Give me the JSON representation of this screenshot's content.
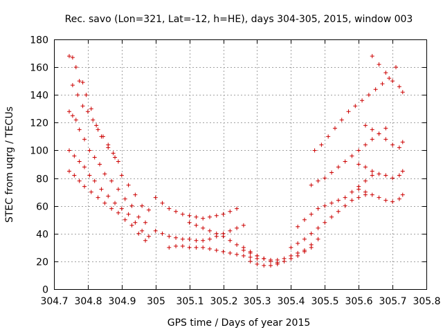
{
  "chart_data": {
    "type": "scatter",
    "title": "Rec. savo (Lon=321, Lat=-12, h=HE), days 304-305, 2015, window 003",
    "xlabel": "GPS time / Days of year 2015",
    "ylabel": "STEC from uqrg / TECUs",
    "xlim": [
      304.7,
      305.8
    ],
    "ylim": [
      0,
      180
    ],
    "xticks": [
      "304.7",
      "304.8",
      "304.9",
      "305",
      "305.1",
      "305.2",
      "305.3",
      "305.4",
      "305.5",
      "305.6",
      "305.7",
      "305.8"
    ],
    "yticks": [
      "0",
      "20",
      "40",
      "60",
      "80",
      "100",
      "120",
      "140",
      "160",
      "180"
    ],
    "grid": true,
    "marker": "+",
    "color": "#cc0000",
    "series": [
      {
        "x": [
          304.745,
          304.755,
          304.765,
          304.775,
          304.785,
          304.795,
          304.81,
          304.825,
          304.84,
          304.86,
          304.88,
          304.9,
          304.92,
          304.94,
          304.96,
          304.98
        ],
        "y": [
          168,
          167,
          160,
          150,
          149,
          140,
          130,
          118,
          110,
          102,
          95,
          82,
          75,
          68,
          60,
          57
        ]
      },
      {
        "x": [
          304.745,
          304.755,
          304.765,
          304.775,
          304.79,
          304.805,
          304.82,
          304.835,
          304.85,
          304.87,
          304.89,
          304.91,
          304.93,
          304.95,
          304.97
        ],
        "y": [
          128,
          125,
          122,
          115,
          108,
          100,
          95,
          90,
          83,
          78,
          72,
          65,
          60,
          52,
          48
        ]
      },
      {
        "x": [
          304.745,
          304.76,
          304.775,
          304.79,
          304.805,
          304.82,
          304.84,
          304.86,
          304.88,
          304.9,
          304.92,
          304.94,
          304.96,
          304.98
        ],
        "y": [
          100,
          96,
          92,
          88,
          82,
          78,
          72,
          67,
          62,
          58,
          54,
          48,
          42,
          38
        ]
      },
      {
        "x": [
          304.745,
          304.76,
          304.775,
          304.79,
          304.81,
          304.83,
          304.85,
          304.87,
          304.89,
          304.91,
          304.93,
          304.95,
          304.97
        ],
        "y": [
          85,
          82,
          78,
          74,
          70,
          66,
          62,
          58,
          55,
          50,
          46,
          40,
          35
        ]
      },
      {
        "x": [
          304.755,
          304.77,
          304.785,
          304.8,
          304.815,
          304.83,
          304.845,
          304.86,
          304.875,
          304.89
        ],
        "y": [
          147,
          140,
          132,
          128,
          122,
          115,
          110,
          104,
          98,
          92
        ]
      },
      {
        "x": [
          305.0,
          305.02,
          305.04,
          305.06,
          305.08,
          305.1,
          305.12,
          305.14,
          305.16,
          305.18,
          305.2,
          305.22,
          305.24
        ],
        "y": [
          66,
          62,
          58,
          56,
          54,
          53,
          52,
          51,
          52,
          53,
          54,
          56,
          58
        ]
      },
      {
        "x": [
          305.0,
          305.02,
          305.04,
          305.06,
          305.08,
          305.1,
          305.12,
          305.14,
          305.16,
          305.18,
          305.2,
          305.22,
          305.24,
          305.26
        ],
        "y": [
          42,
          40,
          38,
          37,
          36,
          36,
          35,
          35,
          36,
          38,
          40,
          42,
          44,
          46
        ]
      },
      {
        "x": [
          305.04,
          305.06,
          305.08,
          305.1,
          305.12,
          305.14,
          305.16,
          305.18,
          305.2,
          305.22,
          305.24,
          305.26,
          305.28,
          305.3
        ],
        "y": [
          30,
          31,
          31,
          30,
          30,
          30,
          29,
          28,
          27,
          26,
          25,
          24,
          23,
          22
        ]
      },
      {
        "x": [
          305.1,
          305.12,
          305.14,
          305.16,
          305.18,
          305.2,
          305.22,
          305.24,
          305.26,
          305.28,
          305.3,
          305.32,
          305.34,
          305.36
        ],
        "y": [
          48,
          46,
          44,
          42,
          40,
          38,
          35,
          32,
          30,
          27,
          24,
          22,
          20,
          19
        ]
      },
      {
        "x": [
          305.28,
          305.3,
          305.32,
          305.34,
          305.36,
          305.38,
          305.4,
          305.42,
          305.44,
          305.46
        ],
        "y": [
          20,
          18,
          17,
          17,
          18,
          20,
          22,
          24,
          27,
          30
        ]
      },
      {
        "x": [
          305.26,
          305.28,
          305.3,
          305.32,
          305.34,
          305.36,
          305.38,
          305.4,
          305.42,
          305.44,
          305.46,
          305.48
        ],
        "y": [
          28,
          26,
          24,
          22,
          21,
          21,
          22,
          24,
          26,
          28,
          32,
          36
        ]
      },
      {
        "x": [
          305.4,
          305.42,
          305.44,
          305.46,
          305.48,
          305.5,
          305.52,
          305.54,
          305.56,
          305.58,
          305.6,
          305.62
        ],
        "y": [
          30,
          33,
          36,
          40,
          44,
          48,
          52,
          56,
          60,
          64,
          66,
          68
        ]
      },
      {
        "x": [
          305.42,
          305.44,
          305.46,
          305.48,
          305.5,
          305.52,
          305.54,
          305.56,
          305.58,
          305.6,
          305.62,
          305.64
        ],
        "y": [
          45,
          50,
          54,
          58,
          60,
          62,
          64,
          66,
          70,
          74,
          78,
          82
        ]
      },
      {
        "x": [
          305.46,
          305.48,
          305.5,
          305.52,
          305.54,
          305.56,
          305.58,
          305.6,
          305.62,
          305.64,
          305.66,
          305.68
        ],
        "y": [
          75,
          78,
          80,
          84,
          88,
          92,
          96,
          100,
          104,
          108,
          112,
          116
        ]
      },
      {
        "x": [
          305.47,
          305.49,
          305.51,
          305.53,
          305.55,
          305.57,
          305.59,
          305.61,
          305.63,
          305.65,
          305.67,
          305.69,
          305.71
        ],
        "y": [
          100,
          104,
          110,
          116,
          122,
          128,
          132,
          136,
          140,
          144,
          148,
          152,
          160
        ]
      },
      {
        "x": [
          305.6,
          305.62,
          305.64,
          305.66,
          305.68,
          305.7,
          305.72,
          305.73
        ],
        "y": [
          72,
          70,
          68,
          66,
          64,
          63,
          65,
          68
        ]
      },
      {
        "x": [
          305.6,
          305.62,
          305.64,
          305.66,
          305.68,
          305.7,
          305.72,
          305.73
        ],
        "y": [
          90,
          88,
          85,
          83,
          82,
          80,
          82,
          85
        ]
      },
      {
        "x": [
          305.62,
          305.64,
          305.66,
          305.68,
          305.7,
          305.72,
          305.73
        ],
        "y": [
          118,
          115,
          112,
          108,
          104,
          102,
          106
        ]
      },
      {
        "x": [
          305.64,
          305.66,
          305.68,
          305.7,
          305.72,
          305.73
        ],
        "y": [
          168,
          162,
          156,
          150,
          146,
          142
        ]
      }
    ]
  }
}
